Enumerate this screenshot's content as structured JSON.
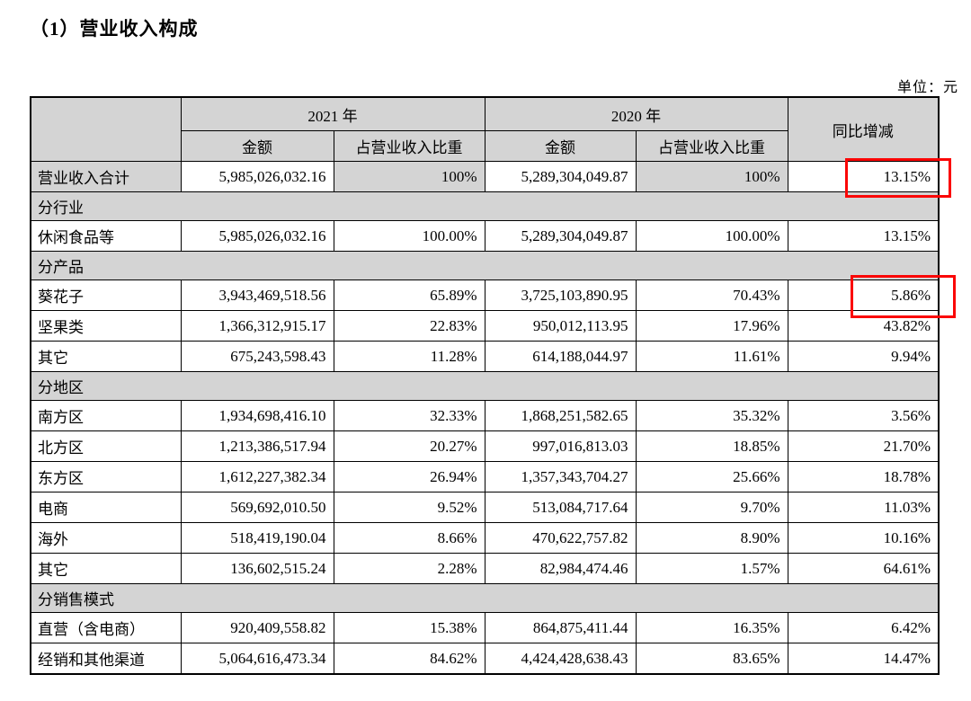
{
  "page": {
    "title": "（1）营业收入构成",
    "unit_label": "单位：元"
  },
  "table": {
    "headers": {
      "year_2021": "2021 年",
      "year_2020": "2020 年",
      "amount": "金额",
      "share": "占营业收入比重",
      "yoy": "同比增减"
    },
    "rows": [
      {
        "type": "data",
        "shaded": true,
        "label": "营业收入合计",
        "amount_2021": "5,985,026,032.16",
        "share_2021": "100%",
        "amount_2020": "5,289,304,049.87",
        "share_2020": "100%",
        "yoy": "13.15%"
      },
      {
        "type": "section",
        "label": "分行业"
      },
      {
        "type": "data",
        "label": "休闲食品等",
        "amount_2021": "5,985,026,032.16",
        "share_2021": "100.00%",
        "amount_2020": "5,289,304,049.87",
        "share_2020": "100.00%",
        "yoy": "13.15%"
      },
      {
        "type": "section",
        "label": "分产品"
      },
      {
        "type": "data",
        "label": "葵花子",
        "amount_2021": "3,943,469,518.56",
        "share_2021": "65.89%",
        "amount_2020": "3,725,103,890.95",
        "share_2020": "70.43%",
        "yoy": "5.86%"
      },
      {
        "type": "data",
        "label": "坚果类",
        "amount_2021": "1,366,312,915.17",
        "share_2021": "22.83%",
        "amount_2020": "950,012,113.95",
        "share_2020": "17.96%",
        "yoy": "43.82%"
      },
      {
        "type": "data",
        "label": "其它",
        "amount_2021": "675,243,598.43",
        "share_2021": "11.28%",
        "amount_2020": "614,188,044.97",
        "share_2020": "11.61%",
        "yoy": "9.94%"
      },
      {
        "type": "section",
        "label": "分地区"
      },
      {
        "type": "data",
        "label": "南方区",
        "amount_2021": "1,934,698,416.10",
        "share_2021": "32.33%",
        "amount_2020": "1,868,251,582.65",
        "share_2020": "35.32%",
        "yoy": "3.56%"
      },
      {
        "type": "data",
        "label": "北方区",
        "amount_2021": "1,213,386,517.94",
        "share_2021": "20.27%",
        "amount_2020": "997,016,813.03",
        "share_2020": "18.85%",
        "yoy": "21.70%"
      },
      {
        "type": "data",
        "label": "东方区",
        "amount_2021": "1,612,227,382.34",
        "share_2021": "26.94%",
        "amount_2020": "1,357,343,704.27",
        "share_2020": "25.66%",
        "yoy": "18.78%"
      },
      {
        "type": "data",
        "label": "电商",
        "amount_2021": "569,692,010.50",
        "share_2021": "9.52%",
        "amount_2020": "513,084,717.64",
        "share_2020": "9.70%",
        "yoy": "11.03%"
      },
      {
        "type": "data",
        "label": "海外",
        "amount_2021": "518,419,190.04",
        "share_2021": "8.66%",
        "amount_2020": "470,622,757.82",
        "share_2020": "8.90%",
        "yoy": "10.16%"
      },
      {
        "type": "data",
        "label": "其它",
        "amount_2021": "136,602,515.24",
        "share_2021": "2.28%",
        "amount_2020": "82,984,474.46",
        "share_2020": "1.57%",
        "yoy": "64.61%"
      },
      {
        "type": "section",
        "label": "分销售模式"
      },
      {
        "type": "data",
        "label": "直营（含电商）",
        "amount_2021": "920,409,558.82",
        "share_2021": "15.38%",
        "amount_2020": "864,875,411.44",
        "share_2020": "16.35%",
        "yoy": "6.42%"
      },
      {
        "type": "data",
        "label": "经销和其他渠道",
        "amount_2021": "5,064,616,473.34",
        "share_2021": "84.62%",
        "amount_2020": "4,424,428,638.43",
        "share_2020": "83.65%",
        "yoy": "14.47%"
      }
    ]
  },
  "annotations": {
    "highlight_color": "#fb0606",
    "highlighted_values": [
      "13.15%",
      "5.86%"
    ],
    "highlighted_rows": [
      "营业收入合计",
      "葵花子"
    ]
  }
}
